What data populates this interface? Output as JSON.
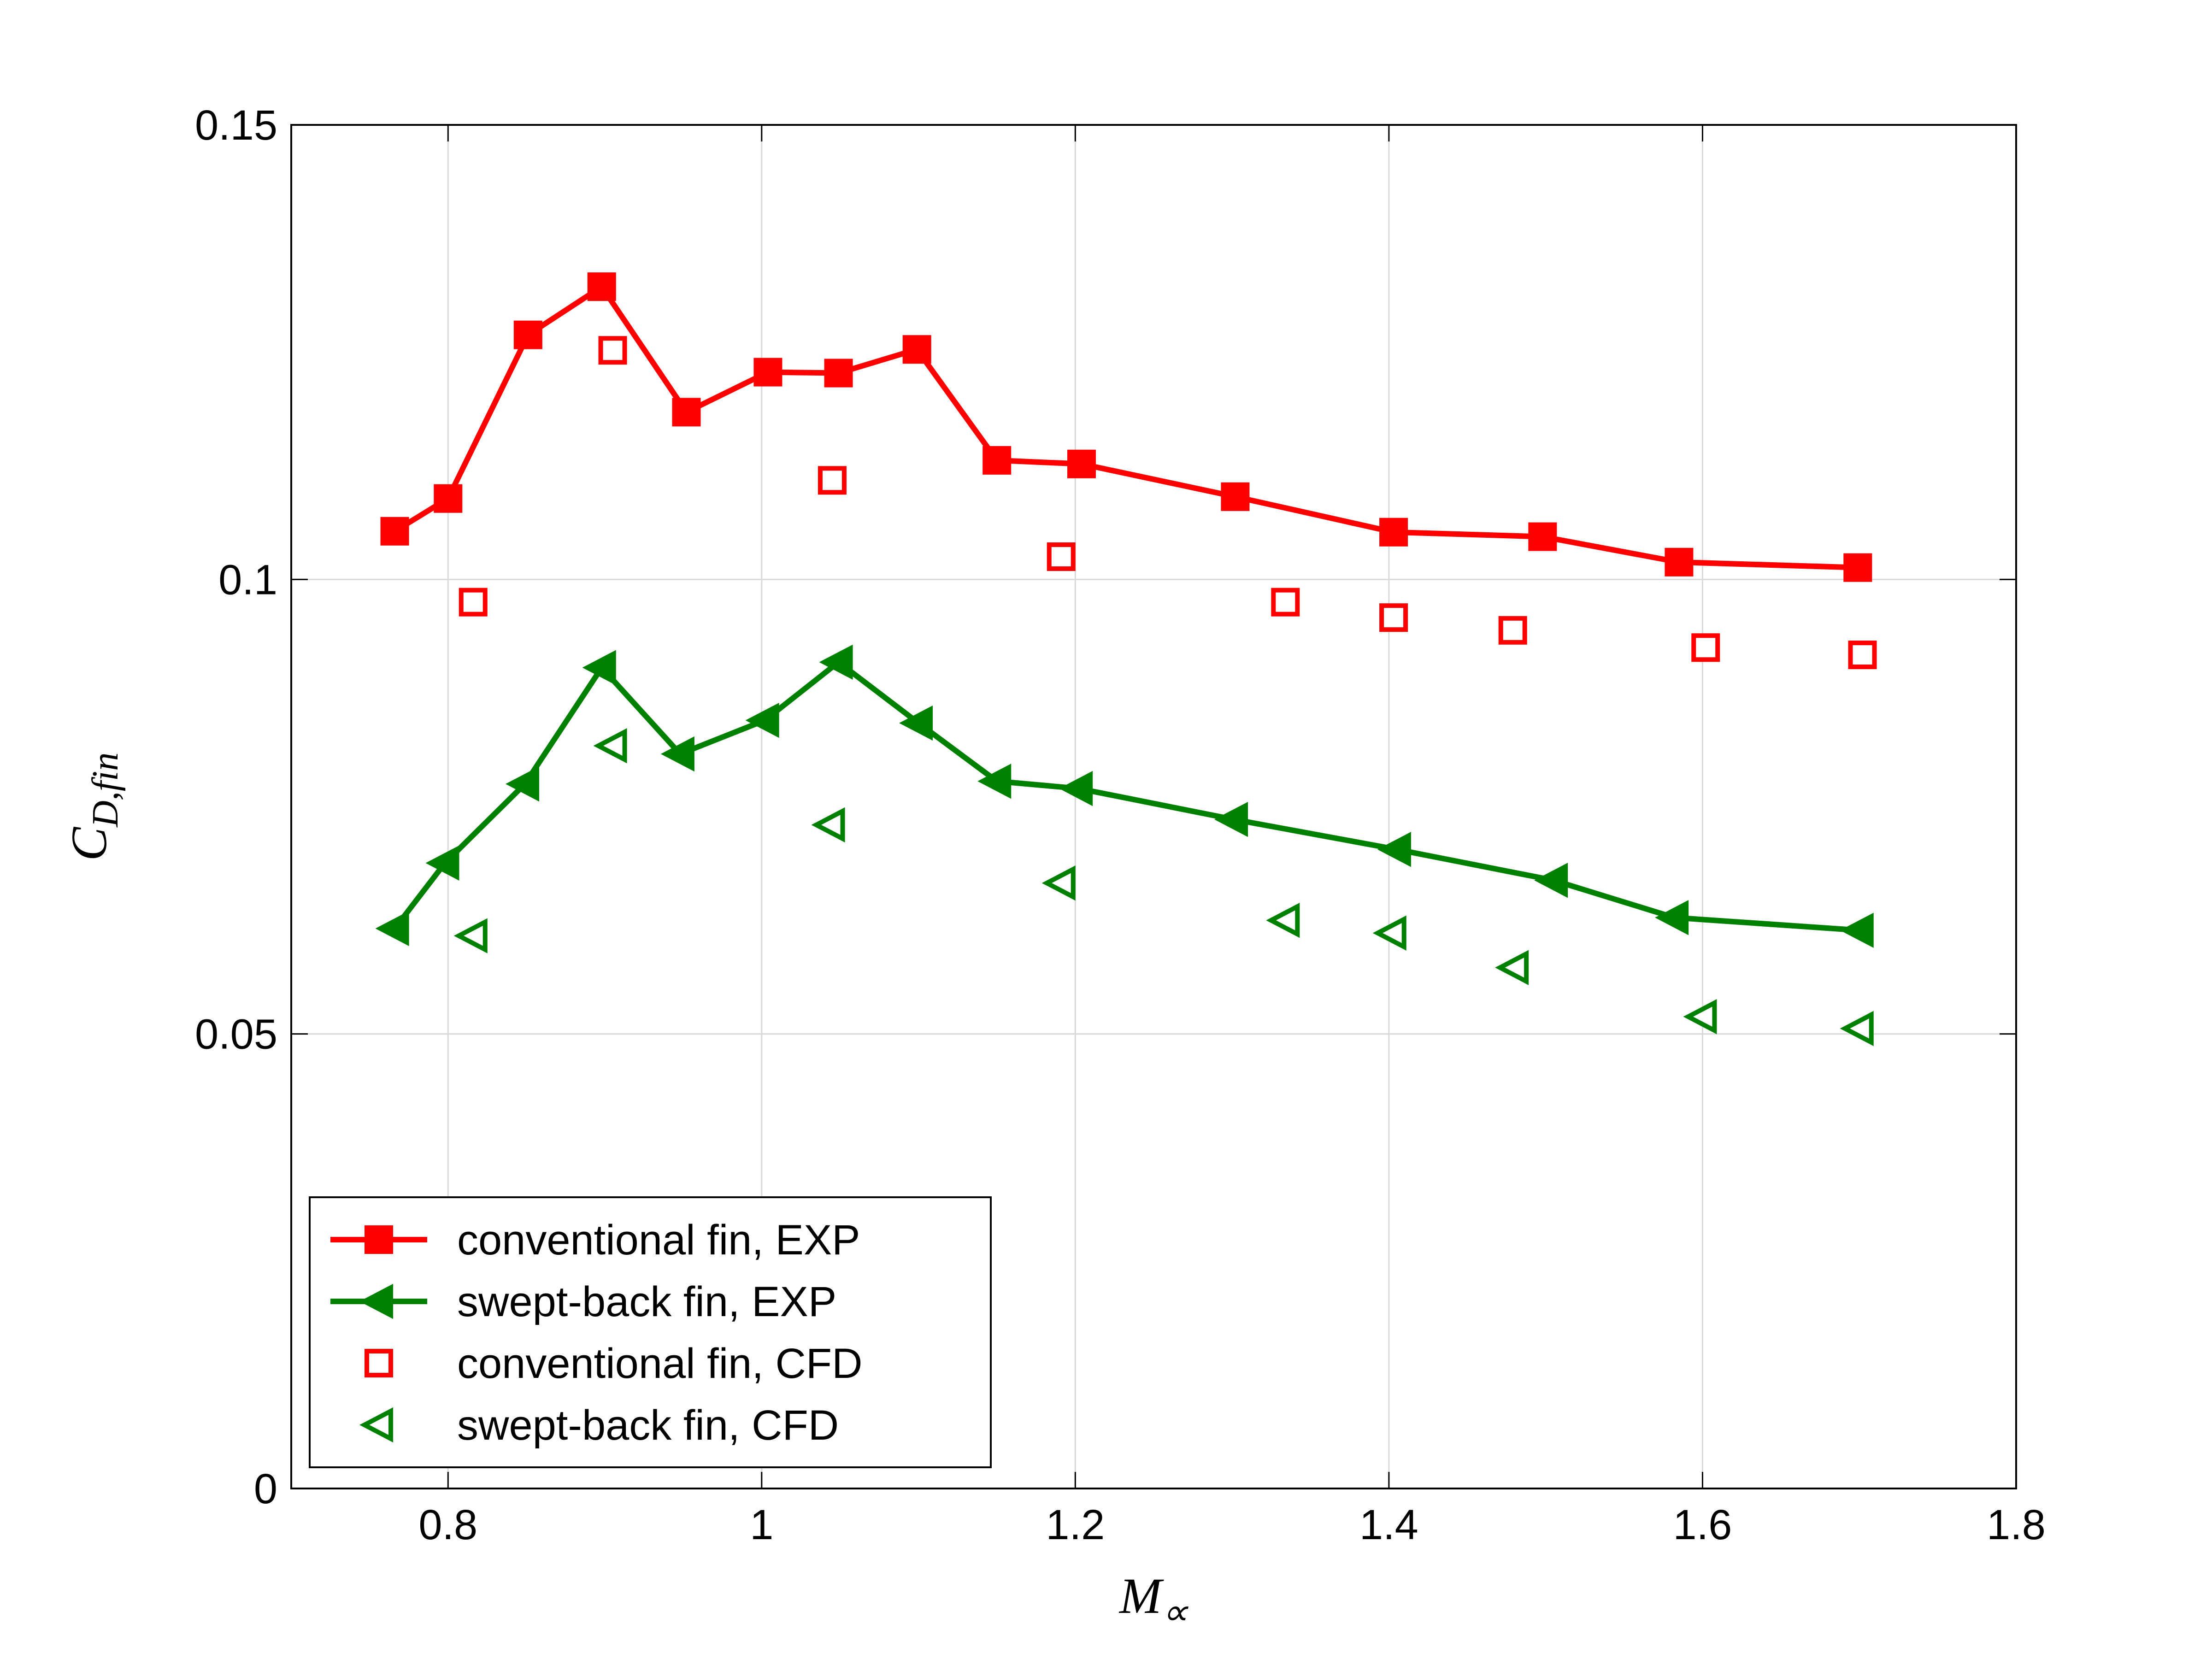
{
  "chart_data": {
    "type": "line",
    "xlabel": {
      "main": "M",
      "sub": "∝"
    },
    "ylabel": {
      "main": "C",
      "sub": "D,fin"
    },
    "xlim": [
      0.7,
      1.8
    ],
    "xticks": [
      0.8,
      1,
      1.2,
      1.4,
      1.6,
      1.8
    ],
    "ylim": [
      0,
      0.15
    ],
    "yticks": [
      0,
      0.05,
      0.1,
      0.15
    ],
    "grid": true,
    "legend_location": "lower left",
    "series": [
      {
        "name": "conventional fin, EXP",
        "color": "#ff0000",
        "marker": "square",
        "filled": true,
        "line": true,
        "x": [
          0.766,
          0.8,
          0.851,
          0.898,
          0.952,
          1.004,
          1.049,
          1.099,
          1.15,
          1.204,
          1.302,
          1.403,
          1.498,
          1.585,
          1.699
        ],
        "values": [
          0.1053,
          0.1089,
          0.1269,
          0.1322,
          0.1184,
          0.1228,
          0.1227,
          0.1253,
          0.1131,
          0.1127,
          0.1091,
          0.1052,
          0.1047,
          0.1019,
          0.1013
        ]
      },
      {
        "name": "swept-back fin, EXP",
        "color": "#008000",
        "marker": "triangle-left",
        "filled": true,
        "line": true,
        "x": [
          0.766,
          0.798,
          0.849,
          0.898,
          0.948,
          1.002,
          1.049,
          1.1,
          1.15,
          1.202,
          1.301,
          1.405,
          1.505,
          1.582,
          1.7
        ],
        "values": [
          0.0616,
          0.0688,
          0.0775,
          0.0903,
          0.0808,
          0.0845,
          0.0909,
          0.0842,
          0.0778,
          0.077,
          0.0736,
          0.0703,
          0.0669,
          0.0628,
          0.0614
        ]
      },
      {
        "name": "conventional fin, CFD",
        "color": "#ff0000",
        "marker": "square",
        "filled": false,
        "line": false,
        "x": [
          0.816,
          0.905,
          1.045,
          1.191,
          1.334,
          1.403,
          1.479,
          1.602,
          1.702
        ],
        "values": [
          0.0975,
          0.1252,
          0.1109,
          0.1025,
          0.0975,
          0.0958,
          0.0944,
          0.0925,
          0.0917
        ]
      },
      {
        "name": "swept-back fin, CFD",
        "color": "#008000",
        "marker": "triangle-left",
        "filled": false,
        "line": false,
        "x": [
          0.816,
          0.905,
          1.044,
          1.191,
          1.334,
          1.402,
          1.48,
          1.6,
          1.7
        ],
        "values": [
          0.0608,
          0.0817,
          0.073,
          0.0666,
          0.0625,
          0.0611,
          0.0573,
          0.0519,
          0.0506
        ]
      }
    ]
  }
}
